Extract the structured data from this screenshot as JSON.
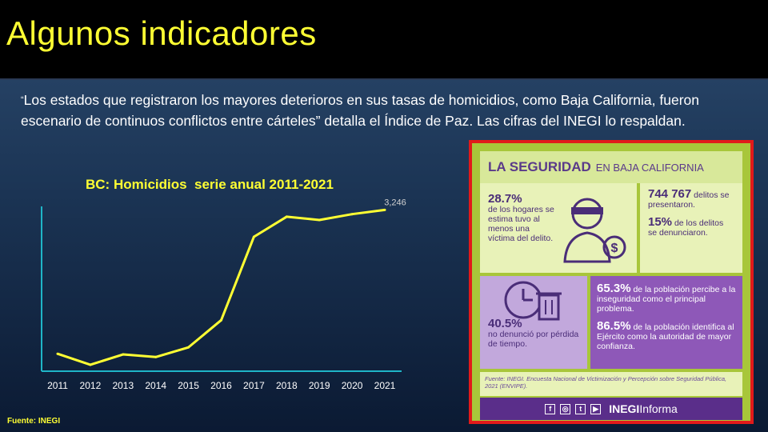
{
  "slide": {
    "title": "Algunos indicadores",
    "quote_mark": "“",
    "quote": "Los estados que registraron los mayores deterioros en sus tasas de homicidios, como Baja California, fueron escenario de continuos conflictos entre cárteles” detalla el Índice de Paz.  Las cifras del INEGI lo respaldan.",
    "chart_title": "BC: Homicidios  serie anual 2011-2021",
    "source": "Fuente: INEGI"
  },
  "chart_data": {
    "type": "line",
    "title": "BC: Homicidios  serie anual 2011-2021",
    "categories": [
      "2011",
      "2012",
      "2013",
      "2014",
      "2015",
      "2016",
      "2017",
      "2018",
      "2019",
      "2020",
      "2021"
    ],
    "series": [
      {
        "values": [
          1020,
          850,
          1010,
          970,
          1120,
          1540,
          2830,
          3140,
          3090,
          3180,
          3246
        ]
      }
    ],
    "data_labels": [
      {
        "index": 10,
        "text": "3,246"
      }
    ],
    "ylim": [
      800,
      3300
    ],
    "grid": false,
    "line_color": "#ffff33",
    "axis_color": "#1fb5c7"
  },
  "infographic": {
    "heading_main": "LA SEGURIDAD",
    "heading_sub": "EN BAJA CALIFORNIA",
    "stat1_value": "28.7%",
    "stat1_text": "de los hogares se estima tuvo al menos una víctima del delito.",
    "stat2_value": "744 767",
    "stat2_text": "delitos se presentaron.",
    "stat3_value": "15%",
    "stat3_text": "de los delitos se denunciaron.",
    "stat4_value": "40.5%",
    "stat4_text": "no denunció por pérdida de tiempo.",
    "stat5_value": "65.3%",
    "stat5_text": "de la población percibe a la inseguridad como el principal problema.",
    "stat6_value": "86.5%",
    "stat6_text": "de la población identifica al Ejército como la autoridad de mayor confianza.",
    "footnote": "Fuente: INEGI. Encuesta Nacional de Victimización y Percepción sobre Seguridad Pública, 2021 (ENVIPE).",
    "brand_bold": "INEGI",
    "brand_light": "Informa",
    "social_icons": [
      "facebook-icon",
      "instagram-icon",
      "twitter-icon",
      "youtube-icon"
    ],
    "colors": {
      "border": "#e11a1a",
      "green": "#a8c63a",
      "purple": "#8e58b8",
      "dark_purple": "#5a2e8a"
    }
  }
}
